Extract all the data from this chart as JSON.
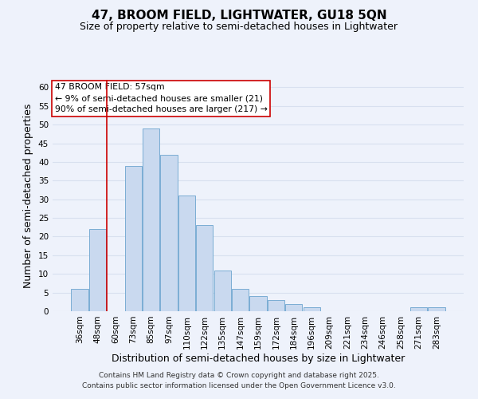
{
  "title": "47, BROOM FIELD, LIGHTWATER, GU18 5QN",
  "subtitle": "Size of property relative to semi-detached houses in Lightwater",
  "xlabel": "Distribution of semi-detached houses by size in Lightwater",
  "ylabel": "Number of semi-detached properties",
  "bar_labels": [
    "36sqm",
    "48sqm",
    "60sqm",
    "73sqm",
    "85sqm",
    "97sqm",
    "110sqm",
    "122sqm",
    "135sqm",
    "147sqm",
    "159sqm",
    "172sqm",
    "184sqm",
    "196sqm",
    "209sqm",
    "221sqm",
    "234sqm",
    "246sqm",
    "258sqm",
    "271sqm",
    "283sqm"
  ],
  "bar_values": [
    6,
    22,
    0,
    39,
    49,
    42,
    31,
    23,
    11,
    6,
    4,
    3,
    2,
    1,
    0,
    0,
    0,
    0,
    0,
    1,
    1
  ],
  "bar_color": "#c9d9ef",
  "bar_edge_color": "#7aadd4",
  "ylim": [
    0,
    62
  ],
  "yticks": [
    0,
    5,
    10,
    15,
    20,
    25,
    30,
    35,
    40,
    45,
    50,
    55,
    60
  ],
  "vline_x": 2,
  "vline_color": "#cc0000",
  "annotation_title": "47 BROOM FIELD: 57sqm",
  "annotation_line1": "← 9% of semi-detached houses are smaller (21)",
  "annotation_line2": "90% of semi-detached houses are larger (217) →",
  "annotation_box_color": "#ffffff",
  "annotation_box_edge": "#cc0000",
  "footer1": "Contains HM Land Registry data © Crown copyright and database right 2025.",
  "footer2": "Contains public sector information licensed under the Open Government Licence v3.0.",
  "background_color": "#eef2fb",
  "grid_color": "#d8e0ef",
  "title_fontsize": 11,
  "subtitle_fontsize": 9,
  "axis_label_fontsize": 9,
  "tick_fontsize": 7.5,
  "footer_fontsize": 6.5,
  "ann_fontsize": 7.8
}
